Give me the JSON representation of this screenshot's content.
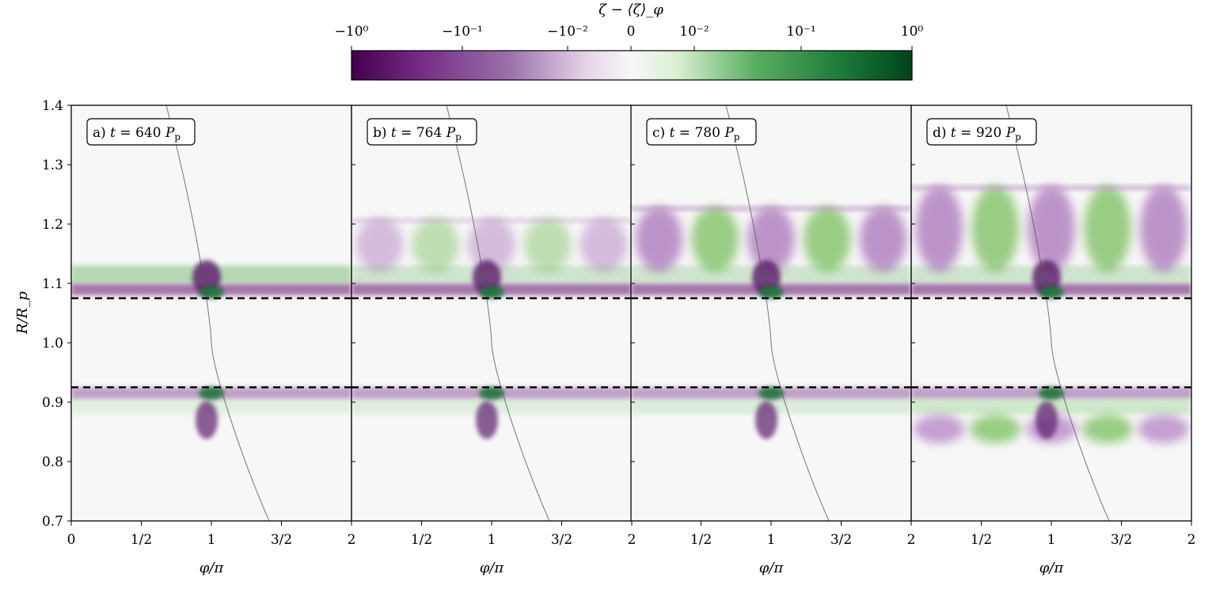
{
  "colorbar": {
    "label": "ζ − ⟨ζ⟩_φ",
    "ticks": [
      "−10⁰",
      "−10⁻¹",
      "−10⁻²",
      "0",
      "10⁻²",
      "10⁻¹",
      "10⁰"
    ],
    "scale": "symlog",
    "range": [
      -1,
      1
    ],
    "colors": {
      "neg_max": "#40004b",
      "neg_mid": "#9970ab",
      "zero": "#f7f7f7",
      "pos_mid": "#5aae61",
      "pos_max": "#00441b"
    }
  },
  "chart_data": {
    "type": "heatmap",
    "ylabel": "R/R_p",
    "xlabel": "φ/π",
    "ylim": [
      0.7,
      1.4
    ],
    "xlim": [
      0,
      2
    ],
    "yticks": [
      "0.7",
      "0.8",
      "0.9",
      "1.0",
      "1.1",
      "1.2",
      "1.3",
      "1.4"
    ],
    "xticks_first": [
      "0",
      "1/2",
      "1",
      "3/2",
      "2"
    ],
    "xticks_other": [
      "1/2",
      "1",
      "3/2",
      "2"
    ],
    "reference_lines_R": [
      1.075,
      0.925
    ],
    "panels": [
      {
        "label_prefix": "a)",
        "t": "640",
        "unit": "P_p"
      },
      {
        "label_prefix": "b)",
        "t": "764",
        "unit": "P_p"
      },
      {
        "label_prefix": "c)",
        "t": "780",
        "unit": "P_p"
      },
      {
        "label_prefix": "d)",
        "t": "920",
        "unit": "P_p"
      }
    ]
  }
}
